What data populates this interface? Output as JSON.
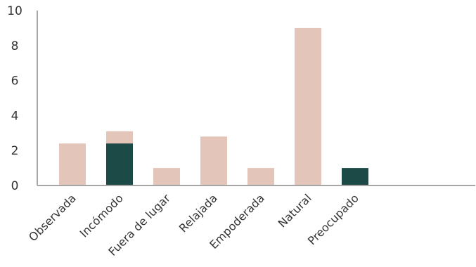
{
  "chart_data": {
    "type": "bar",
    "stacked": false,
    "title": "",
    "xlabel": "",
    "ylabel": "",
    "ylim": [
      0,
      10
    ],
    "yticks": [
      0,
      2,
      4,
      6,
      8,
      10
    ],
    "grid": false,
    "legend": "none",
    "categories": [
      "Observada",
      "Incómodo",
      "Fuera de lugar",
      "Relajada",
      "Empoderada",
      "Natural",
      "Preocupado"
    ],
    "series": [
      {
        "color": "#e3c5b9",
        "values": [
          2.4,
          3.1,
          1.0,
          2.8,
          1.0,
          9.0,
          null
        ]
      },
      {
        "color": "#1b4a47",
        "values": [
          null,
          2.4,
          null,
          null,
          null,
          null,
          1.0
        ]
      }
    ],
    "colors": {
      "axis": "#a6a6a6",
      "text": "#333333"
    }
  }
}
